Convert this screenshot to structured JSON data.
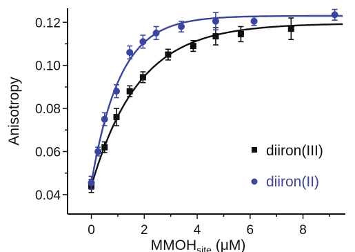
{
  "chart_data": {
    "type": "scatter",
    "ylabel": "Anisotropy",
    "xlabel": {
      "main": "MMOH",
      "sub": "site",
      "unit": " (μM)"
    },
    "xlim": [
      -0.9,
      9.6
    ],
    "ylim": [
      0.031,
      0.1265
    ],
    "xticks": [
      0,
      2,
      4,
      6,
      8
    ],
    "yticks": [
      0.04,
      0.06,
      0.08,
      0.1,
      0.12
    ],
    "xtick_labels": [
      "0",
      "2",
      "4",
      "6",
      "8"
    ],
    "ytick_labels": [
      "0.04",
      "0.06",
      "0.08",
      "0.10",
      "0.12"
    ],
    "legend_position": "bottom-right",
    "series": [
      {
        "name": "diiron(III)",
        "marker": "square",
        "color": "#111111",
        "points": [
          {
            "x": 0.0,
            "y": 0.044,
            "err": 0.003
          },
          {
            "x": 0.5,
            "y": 0.062,
            "err": 0.0025
          },
          {
            "x": 0.95,
            "y": 0.076,
            "err": 0.004
          },
          {
            "x": 1.45,
            "y": 0.088,
            "err": 0.0025
          },
          {
            "x": 1.95,
            "y": 0.0945,
            "err": 0.0025
          },
          {
            "x": 2.9,
            "y": 0.105,
            "err": 0.0025
          },
          {
            "x": 3.85,
            "y": 0.109,
            "err": 0.0025
          },
          {
            "x": 4.7,
            "y": 0.1135,
            "err": 0.004
          },
          {
            "x": 5.65,
            "y": 0.1145,
            "err": 0.0035
          },
          {
            "x": 7.55,
            "y": 0.117,
            "err": 0.005
          }
        ],
        "fit_endpoint_y": 0.119
      },
      {
        "name": "diiron(II)",
        "marker": "circle",
        "color": "#3a45a2",
        "points": [
          {
            "x": 0.0,
            "y": 0.0455,
            "err": 0.003
          },
          {
            "x": 0.25,
            "y": 0.06,
            "err": 0.002
          },
          {
            "x": 0.5,
            "y": 0.075,
            "err": 0.003
          },
          {
            "x": 0.95,
            "y": 0.088,
            "err": 0.003
          },
          {
            "x": 1.45,
            "y": 0.106,
            "err": 0.003
          },
          {
            "x": 1.95,
            "y": 0.111,
            "err": 0.003
          },
          {
            "x": 2.45,
            "y": 0.115,
            "err": 0.003
          },
          {
            "x": 3.4,
            "y": 0.118,
            "err": 0.0025
          },
          {
            "x": 4.7,
            "y": 0.1205,
            "err": 0.004
          },
          {
            "x": 6.15,
            "y": 0.1205,
            "err": 0.002
          },
          {
            "x": 9.2,
            "y": 0.1235,
            "err": 0.0025
          }
        ],
        "fit_endpoint_y": 0.1225
      }
    ]
  }
}
